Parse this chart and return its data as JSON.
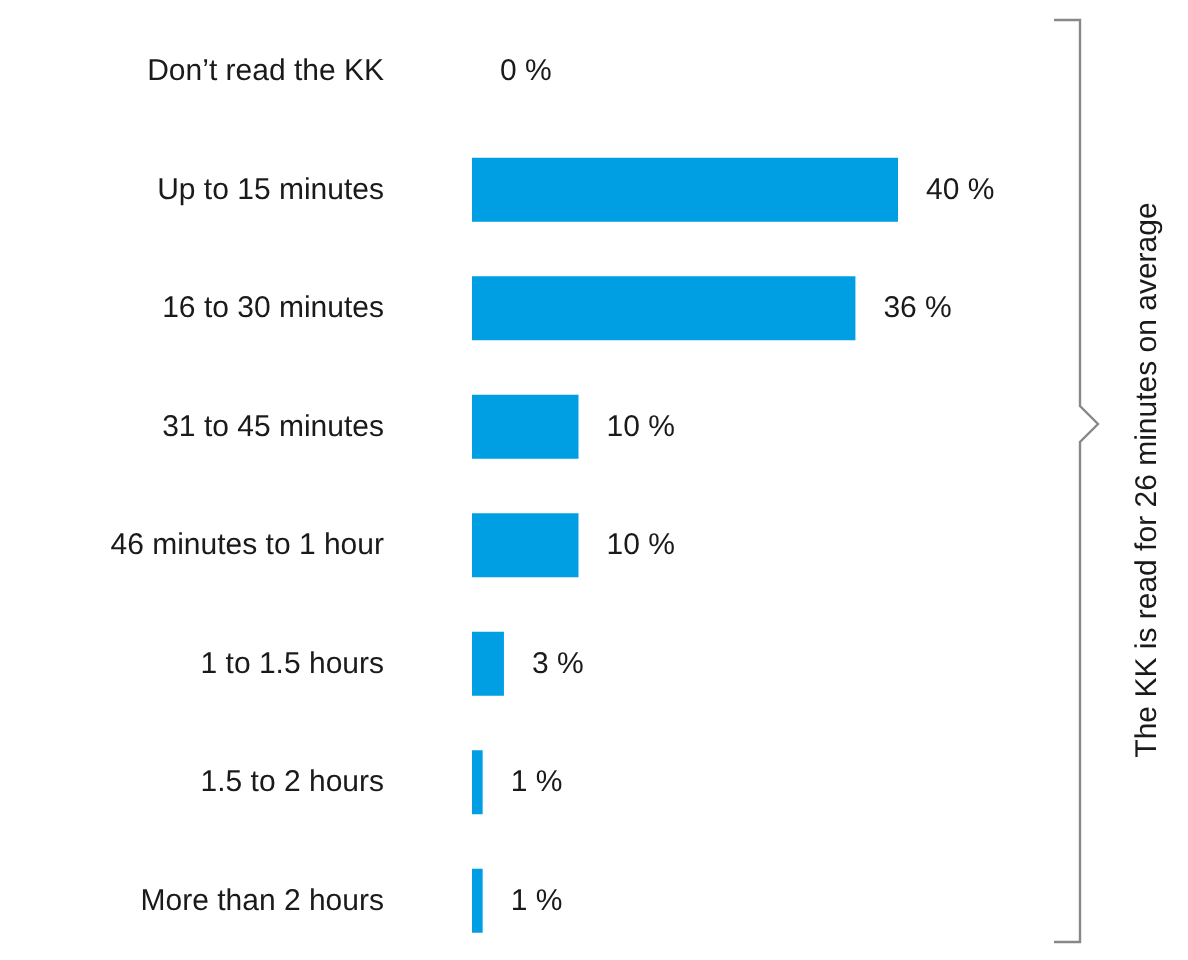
{
  "chart_data": {
    "type": "bar",
    "orientation": "horizontal",
    "categories": [
      "Don’t read the KK",
      "Up to 15 minutes",
      "16 to 30 minutes",
      "31 to 45 minutes",
      "46 minutes to 1 hour",
      "1 to 1.5 hours",
      "1.5 to 2 hours",
      "More than 2 hours"
    ],
    "values": [
      0,
      40,
      36,
      10,
      10,
      3,
      1,
      1
    ],
    "value_labels": [
      "0 %",
      "40 %",
      "36 %",
      "10 %",
      "10 %",
      "3 %",
      "1 %",
      "1 %"
    ],
    "color": "#009fe3",
    "xlim": [
      0,
      40
    ],
    "tick_labels": "y",
    "annotations": [
      "The KK is read for 26 minutes on average"
    ]
  }
}
